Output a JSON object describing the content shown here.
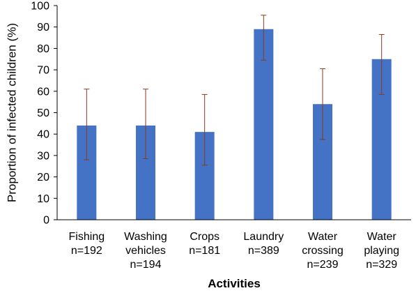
{
  "chart_data": {
    "type": "bar",
    "title": "",
    "xlabel": "Activities",
    "ylabel": "Proportion of infected children (%)",
    "ylim": [
      0,
      100
    ],
    "yticks": [
      0,
      10,
      20,
      30,
      40,
      50,
      60,
      70,
      80,
      90,
      100
    ],
    "grid": false,
    "legend": "none",
    "categories": [
      {
        "label_lines": [
          "Fishing",
          "n=192"
        ],
        "value": 44,
        "err_low": 28,
        "err_high": 61
      },
      {
        "label_lines": [
          "Washing",
          "vehicles",
          "n=194"
        ],
        "value": 44,
        "err_low": 28.5,
        "err_high": 61
      },
      {
        "label_lines": [
          "Crops",
          "n=181"
        ],
        "value": 41,
        "err_low": 25.5,
        "err_high": 58.5
      },
      {
        "label_lines": [
          "Laundry",
          "n=389"
        ],
        "value": 89,
        "err_low": 74.5,
        "err_high": 95.5
      },
      {
        "label_lines": [
          "Water",
          "crossing",
          "n=239"
        ],
        "value": 54,
        "err_low": 37.5,
        "err_high": 70.5
      },
      {
        "label_lines": [
          "Water",
          "playing",
          "n=329"
        ],
        "value": 75,
        "err_low": 58.5,
        "err_high": 86.5
      }
    ],
    "colors": {
      "bar": "#4472C4",
      "error_bar": "#8B3A1E",
      "axis": "#000000"
    }
  }
}
